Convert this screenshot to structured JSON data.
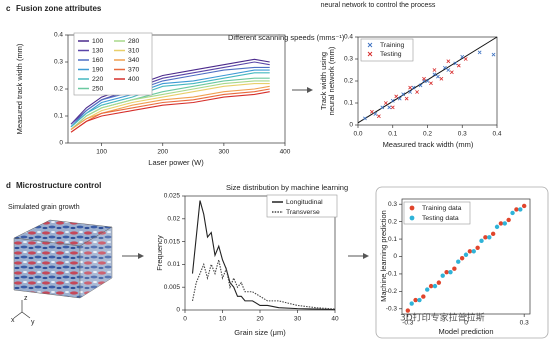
{
  "panels": {
    "c": {
      "letter": "c",
      "title": "Fusion zone attributes"
    },
    "d": {
      "letter": "d",
      "title": "Microstructure control"
    }
  },
  "caption_top": "neural network to control the process",
  "grain_image_label": "Simulated grain growth",
  "axes_labels": [
    "x",
    "y",
    "z"
  ],
  "watermark": "3D打印专家拉普拉斯",
  "chart_data": [
    {
      "type": "line",
      "title": "Different scanning speeds (mms⁻¹)",
      "x_label": "Laser power (W)",
      "y_label": "Measured track width (mm)",
      "x": [
        50,
        75,
        100,
        150,
        200,
        250,
        300,
        350,
        375
      ],
      "xlim": [
        45,
        400
      ],
      "xticks": [
        100,
        200,
        300,
        400
      ],
      "ylim": [
        0,
        0.4
      ],
      "yticks": [
        0,
        0.1,
        0.2,
        0.3,
        0.4
      ],
      "series": [
        {
          "name": "100",
          "color": "#4b2a8c",
          "values": [
            0.07,
            0.13,
            0.17,
            0.21,
            0.25,
            0.27,
            0.29,
            0.31,
            0.3
          ]
        },
        {
          "name": "130",
          "color": "#5a45a8",
          "values": [
            0.07,
            0.12,
            0.16,
            0.2,
            0.24,
            0.26,
            0.28,
            0.3,
            0.29
          ]
        },
        {
          "name": "160",
          "color": "#4f6fc4",
          "values": [
            0.06,
            0.12,
            0.16,
            0.19,
            0.23,
            0.25,
            0.27,
            0.28,
            0.28
          ]
        },
        {
          "name": "190",
          "color": "#3d9ad4",
          "values": [
            0.06,
            0.11,
            0.15,
            0.18,
            0.22,
            0.23,
            0.25,
            0.27,
            0.27
          ]
        },
        {
          "name": "220",
          "color": "#45b8c0",
          "values": [
            0.06,
            0.11,
            0.14,
            0.17,
            0.21,
            0.22,
            0.24,
            0.26,
            0.26
          ]
        },
        {
          "name": "250",
          "color": "#6cc9a0",
          "values": [
            0.05,
            0.1,
            0.13,
            0.16,
            0.19,
            0.21,
            0.23,
            0.24,
            0.24
          ]
        },
        {
          "name": "280",
          "color": "#a8d88a",
          "values": [
            0.05,
            0.1,
            0.13,
            0.16,
            0.18,
            0.2,
            0.22,
            0.23,
            0.23
          ]
        },
        {
          "name": "310",
          "color": "#e8cf6a",
          "values": [
            0.05,
            0.09,
            0.12,
            0.15,
            0.17,
            0.19,
            0.21,
            0.22,
            0.22
          ]
        },
        {
          "name": "340",
          "color": "#f0a050",
          "values": [
            0.05,
            0.09,
            0.11,
            0.14,
            0.16,
            0.17,
            0.19,
            0.2,
            0.21
          ]
        },
        {
          "name": "370",
          "color": "#e86a3c",
          "values": [
            0.04,
            0.08,
            0.11,
            0.13,
            0.15,
            0.16,
            0.18,
            0.19,
            0.2
          ]
        },
        {
          "name": "400",
          "color": "#d6302c",
          "values": [
            0.04,
            0.08,
            0.1,
            0.12,
            0.14,
            0.15,
            0.17,
            0.18,
            0.19
          ]
        }
      ]
    },
    {
      "type": "scatter",
      "marker": "x",
      "x_label": "Measured track width (mm)",
      "y_label": [
        "Track width using",
        "neural network (mm)"
      ],
      "xlim": [
        0,
        0.4
      ],
      "xticks": [
        {
          "value": 0,
          "label": "0.0"
        },
        0.1,
        0.2,
        0.3,
        0.4
      ],
      "ylim": [
        0,
        0.4
      ],
      "yticks": [
        0,
        0.1,
        0.2,
        0.3,
        0.4
      ],
      "fit_line": {
        "x": [
          0,
          0.4
        ],
        "y": [
          0.01,
          0.4
        ],
        "color": "#111"
      },
      "series": [
        {
          "name": "Training",
          "color": "#3a6fc0",
          "x": [
            0.02,
            0.05,
            0.07,
            0.09,
            0.1,
            0.12,
            0.13,
            0.15,
            0.16,
            0.18,
            0.19,
            0.2,
            0.22,
            0.23,
            0.25,
            0.26,
            0.28,
            0.3,
            0.35,
            0.39
          ],
          "values": [
            0.03,
            0.05,
            0.08,
            0.08,
            0.11,
            0.12,
            0.14,
            0.15,
            0.17,
            0.18,
            0.2,
            0.2,
            0.23,
            0.22,
            0.26,
            0.25,
            0.28,
            0.31,
            0.33,
            0.32
          ]
        },
        {
          "name": "Testing",
          "color": "#d62828",
          "x": [
            0.04,
            0.06,
            0.08,
            0.1,
            0.11,
            0.14,
            0.15,
            0.17,
            0.19,
            0.21,
            0.22,
            0.24,
            0.26,
            0.27,
            0.29,
            0.31
          ],
          "values": [
            0.06,
            0.04,
            0.1,
            0.08,
            0.13,
            0.12,
            0.17,
            0.15,
            0.21,
            0.19,
            0.25,
            0.21,
            0.29,
            0.24,
            0.27,
            0.3
          ]
        }
      ]
    },
    {
      "type": "line",
      "title": "Size distribution by machine learning",
      "x_label": "Grain size (μm)",
      "y_label": "Frequency",
      "x": [
        2,
        3,
        4,
        5,
        6,
        7,
        8,
        9,
        10,
        11,
        12,
        13,
        14,
        15,
        16,
        18,
        20,
        22,
        25,
        30,
        35,
        40
      ],
      "xlim": [
        0,
        40
      ],
      "xticks": [
        0,
        10,
        20,
        30,
        40
      ],
      "ylim": [
        0,
        0.025
      ],
      "yticks": [
        0,
        0.005,
        0.01,
        0.015,
        0.02,
        0.025
      ],
      "series": [
        {
          "name": "Longitudinal",
          "color": "#222",
          "style": "solid",
          "values": [
            0.008,
            0.016,
            0.024,
            0.021,
            0.016,
            0.017,
            0.012,
            0.014,
            0.011,
            0.009,
            0.006,
            0.005,
            0.003,
            0.003,
            0.002,
            0.002,
            0.001,
            0.001,
            0.0005,
            0.0003,
            0.0002,
            0.0001
          ]
        },
        {
          "name": "Transverse",
          "color": "#444",
          "style": "dotted",
          "values": [
            0.002,
            0.006,
            0.008,
            0.01,
            0.007,
            0.01,
            0.008,
            0.011,
            0.007,
            0.009,
            0.005,
            0.007,
            0.005,
            0.006,
            0.004,
            0.004,
            0.003,
            0.002,
            0.002,
            0.001,
            0.0005,
            0.0002
          ]
        }
      ]
    },
    {
      "type": "scatter",
      "marker": "o",
      "x_label": "Model prediction",
      "y_label": "Machine learning prediction",
      "xlim": [
        -0.33,
        0.33
      ],
      "xticks": [
        -0.3,
        0,
        0.3
      ],
      "ylim": [
        -0.33,
        0.33
      ],
      "yticks": [
        -0.3,
        -0.2,
        -0.1,
        0,
        0.1,
        0.2,
        0.3
      ],
      "series": [
        {
          "name": "Training data",
          "color": "#e0452c",
          "x": [
            -0.3,
            -0.26,
            -0.22,
            -0.18,
            -0.14,
            -0.1,
            -0.06,
            -0.02,
            0.02,
            0.06,
            0.1,
            0.14,
            0.18,
            0.22,
            0.26,
            0.3
          ],
          "values": [
            -0.31,
            -0.25,
            -0.23,
            -0.17,
            -0.15,
            -0.09,
            -0.07,
            -0.01,
            0.03,
            0.05,
            0.11,
            0.13,
            0.19,
            0.21,
            0.27,
            0.29
          ]
        },
        {
          "name": "Testing data",
          "color": "#2fb3d8",
          "x": [
            -0.28,
            -0.24,
            -0.2,
            -0.16,
            -0.12,
            -0.08,
            -0.04,
            0,
            0.04,
            0.08,
            0.12,
            0.16,
            0.2,
            0.24,
            0.28
          ],
          "values": [
            -0.27,
            -0.25,
            -0.19,
            -0.17,
            -0.11,
            -0.09,
            -0.03,
            0.01,
            0.03,
            0.09,
            0.11,
            0.17,
            0.19,
            0.25,
            0.27
          ]
        }
      ]
    }
  ]
}
